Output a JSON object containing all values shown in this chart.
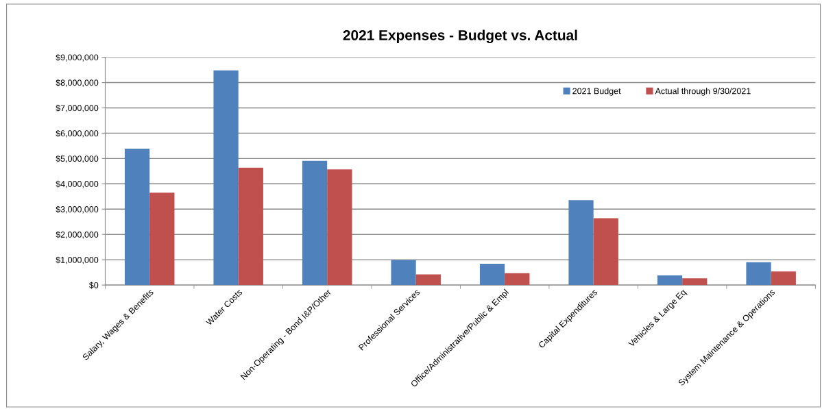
{
  "chart_data": {
    "type": "bar",
    "title": "2021 Expenses - Budget vs. Actual",
    "categories": [
      "Salary, Wages & Benefits",
      "Water Costs",
      "Non-Operating - Bond I&P/Other",
      "Professional Services",
      "Office/Administrative/Public & Empl",
      "Capital Expenditures",
      "Vehicles & Large Eq",
      "System Maintenance & Operations"
    ],
    "series": [
      {
        "name": "2021 Budget",
        "color": "#4f81bd",
        "values": [
          5390000,
          8480000,
          4910000,
          990000,
          840000,
          3350000,
          380000,
          900000
        ]
      },
      {
        "name": "Actual through 9/30/2021",
        "color": "#c0504d",
        "values": [
          3650000,
          4640000,
          4570000,
          420000,
          470000,
          2640000,
          270000,
          540000
        ]
      }
    ],
    "ylim": [
      0,
      9000000
    ],
    "yticks": [
      {
        "value": 0,
        "label": "$0"
      },
      {
        "value": 1000000,
        "label": "$1,000,000"
      },
      {
        "value": 2000000,
        "label": "$2,000,000"
      },
      {
        "value": 3000000,
        "label": "$3,000,000"
      },
      {
        "value": 4000000,
        "label": "$4,000,000"
      },
      {
        "value": 5000000,
        "label": "$5,000,000"
      },
      {
        "value": 6000000,
        "label": "$6,000,000"
      },
      {
        "value": 7000000,
        "label": "$7,000,000"
      },
      {
        "value": 8000000,
        "label": "$8,000,000"
      },
      {
        "value": 9000000,
        "label": "$9,000,000"
      }
    ],
    "grid": "y",
    "legend": "top right"
  }
}
